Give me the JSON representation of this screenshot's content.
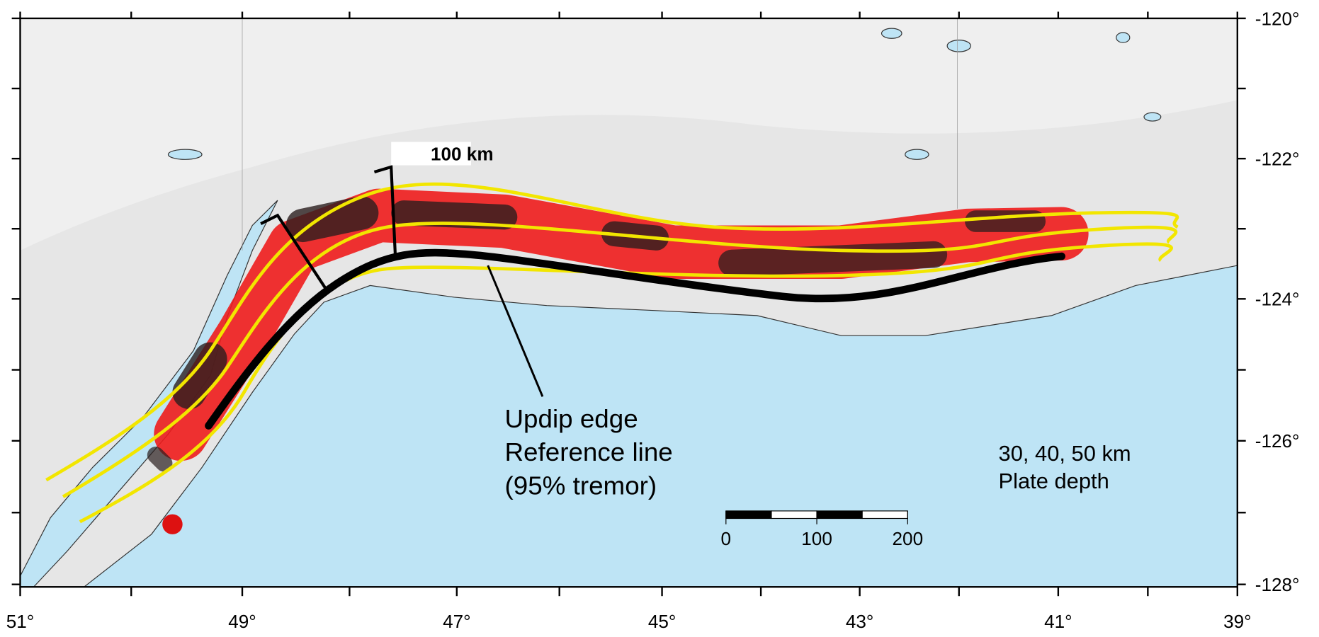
{
  "map": {
    "x_labels": [
      "51°",
      "49°",
      "47°",
      "45°",
      "43°",
      "41°",
      "39°"
    ],
    "y_labels": [
      "-120°",
      "-122°",
      "-124°",
      "-126°",
      "-128°"
    ],
    "profile_label": "100 km",
    "reference_note": [
      "Updip edge",
      "Reference line",
      "(95% tremor)"
    ],
    "depth_note": [
      "30, 40, 50 km",
      "Plate depth"
    ],
    "scale_bar_labels": [
      "0",
      "100",
      "200"
    ]
  }
}
